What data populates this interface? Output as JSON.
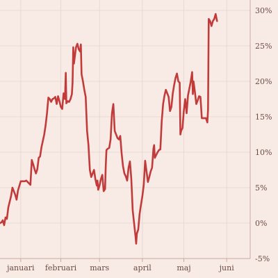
{
  "chart_data": {
    "type": "line",
    "title": "",
    "xlabel": "",
    "ylabel": "",
    "x_tick_labels": [
      "januari",
      "februari",
      "mars",
      "april",
      "maj",
      "juni"
    ],
    "x_tick_positions_day": [
      16,
      45,
      73,
      104,
      134,
      165
    ],
    "y_ticks": [
      -5,
      0,
      5,
      10,
      15,
      20,
      25,
      30
    ],
    "y_tick_labels": [
      "-5%",
      "0%",
      "5%",
      "10%",
      "15%",
      "20%",
      "25%",
      "30%"
    ],
    "ylim": [
      -5,
      30
    ],
    "xlim": [
      1,
      182
    ],
    "grid": true,
    "series": [
      {
        "color": "#c23b3b",
        "points": [
          [
            1,
            0.0
          ],
          [
            2,
            0.1
          ],
          [
            3,
            0.4
          ],
          [
            4,
            -0.3
          ],
          [
            5,
            0.8
          ],
          [
            6,
            0.6
          ],
          [
            7,
            2.2
          ],
          [
            9,
            3.8
          ],
          [
            10,
            5.0
          ],
          [
            12,
            4.0
          ],
          [
            13,
            3.3
          ],
          [
            14,
            4.6
          ],
          [
            16,
            5.9
          ],
          [
            18,
            5.9
          ],
          [
            19,
            5.9
          ],
          [
            20,
            6.0
          ],
          [
            21,
            5.8
          ],
          [
            22,
            5.6
          ],
          [
            23,
            5.4
          ],
          [
            24,
            8.9
          ],
          [
            25,
            8.3
          ],
          [
            26,
            7.6
          ],
          [
            27,
            7.0
          ],
          [
            28,
            7.6
          ],
          [
            29,
            9.2
          ],
          [
            30,
            9.4
          ],
          [
            31,
            10.7
          ],
          [
            33,
            12.5
          ],
          [
            34,
            13.8
          ],
          [
            35,
            15.5
          ],
          [
            36,
            17.7
          ],
          [
            37,
            17.5
          ],
          [
            38,
            17.1
          ],
          [
            39,
            17.5
          ],
          [
            40,
            17.6
          ],
          [
            41,
            17.8
          ],
          [
            42,
            16.8
          ],
          [
            43,
            17.9
          ],
          [
            44,
            17.2
          ],
          [
            45,
            16.4
          ],
          [
            46,
            16.1
          ],
          [
            47,
            18.3
          ],
          [
            48,
            17.5
          ],
          [
            48.6,
            21.2
          ],
          [
            49,
            16.9
          ],
          [
            50,
            17.2
          ],
          [
            51,
            17.1
          ],
          [
            52,
            17.5
          ],
          [
            53,
            18.2
          ],
          [
            53.5,
            19.8
          ],
          [
            54,
            24.8
          ],
          [
            54.5,
            22.5
          ],
          [
            55,
            23.3
          ],
          [
            56,
            24.8
          ],
          [
            57,
            25.3
          ],
          [
            58,
            24.5
          ],
          [
            59,
            24.2
          ],
          [
            59.5,
            25.2
          ],
          [
            60,
            21.0
          ],
          [
            61,
            20.0
          ],
          [
            62,
            18.8
          ],
          [
            63,
            17.8
          ],
          [
            64,
            13.0
          ],
          [
            65,
            11.0
          ],
          [
            66,
            7.5
          ],
          [
            67,
            6.5
          ],
          [
            68,
            7.0
          ],
          [
            69,
            7.5
          ],
          [
            70,
            6.2
          ],
          [
            71,
            5.3
          ],
          [
            71.5,
            6.0
          ],
          [
            72,
            4.7
          ],
          [
            73,
            5.3
          ],
          [
            74,
            6.2
          ],
          [
            75,
            6.8
          ],
          [
            76,
            4.5
          ],
          [
            77,
            4.8
          ],
          [
            77.5,
            8.0
          ],
          [
            78,
            10.3
          ],
          [
            79,
            10.5
          ],
          [
            80,
            10.6
          ],
          [
            81,
            11.8
          ],
          [
            82,
            15.5
          ],
          [
            83,
            16.8
          ],
          [
            84,
            13.0
          ],
          [
            85,
            12.5
          ],
          [
            86,
            12.0
          ],
          [
            87,
            11.8
          ],
          [
            88,
            12.3
          ],
          [
            89,
            9.8
          ],
          [
            90,
            8.0
          ],
          [
            91,
            7.0
          ],
          [
            92,
            6.6
          ],
          [
            93,
            6.0
          ],
          [
            94,
            7.8
          ],
          [
            95,
            8.7
          ],
          [
            96,
            6.2
          ],
          [
            97,
            1.8
          ],
          [
            98,
            0.0
          ],
          [
            99,
            -1.8
          ],
          [
            99.5,
            -2.9
          ],
          [
            100,
            -1.5
          ],
          [
            101,
            -0.9
          ],
          [
            102,
            1.3
          ],
          [
            103,
            2.6
          ],
          [
            104,
            3.8
          ],
          [
            105,
            5.4
          ],
          [
            106,
            8.8
          ],
          [
            107,
            7.3
          ],
          [
            108,
            5.8
          ],
          [
            109,
            6.5
          ],
          [
            110,
            7.3
          ],
          [
            111,
            7.8
          ],
          [
            112,
            10.5
          ],
          [
            112.5,
            11.0
          ],
          [
            113,
            9.2
          ],
          [
            114,
            9.6
          ],
          [
            115,
            10.0
          ],
          [
            116,
            10.3
          ],
          [
            117,
            10.4
          ],
          [
            118,
            14.4
          ],
          [
            119,
            16.8
          ],
          [
            120,
            18.0
          ],
          [
            121,
            18.8
          ],
          [
            122,
            18.3
          ],
          [
            123,
            17.8
          ],
          [
            124,
            15.8
          ],
          [
            125,
            16.4
          ],
          [
            126,
            18.3
          ],
          [
            127,
            19.5
          ],
          [
            128,
            20.5
          ],
          [
            129,
            21.1
          ],
          [
            130,
            20.0
          ],
          [
            131,
            19.8
          ],
          [
            131.5,
            12.5
          ],
          [
            132,
            13.0
          ],
          [
            133,
            13.4
          ],
          [
            134,
            15.9
          ],
          [
            135,
            17.5
          ],
          [
            136,
            15.5
          ],
          [
            137,
            18.0
          ],
          [
            138,
            19.0
          ],
          [
            139,
            20.0
          ],
          [
            140,
            21.3
          ],
          [
            140.5,
            18.2
          ],
          [
            141,
            20.0
          ],
          [
            142,
            18.5
          ],
          [
            143,
            16.8
          ],
          [
            144,
            17.3
          ],
          [
            145,
            17.9
          ],
          [
            146,
            17.8
          ],
          [
            147,
            14.8
          ],
          [
            148,
            14.8
          ],
          [
            149,
            14.8
          ],
          [
            150,
            14.8
          ],
          [
            151,
            14.2
          ],
          [
            151.5,
            16.0
          ],
          [
            152,
            28.8
          ],
          [
            153,
            28.5
          ],
          [
            154,
            27.8
          ],
          [
            155,
            28.5
          ],
          [
            156,
            28.8
          ],
          [
            157,
            29.5
          ],
          [
            158,
            28.5
          ]
        ]
      }
    ]
  }
}
